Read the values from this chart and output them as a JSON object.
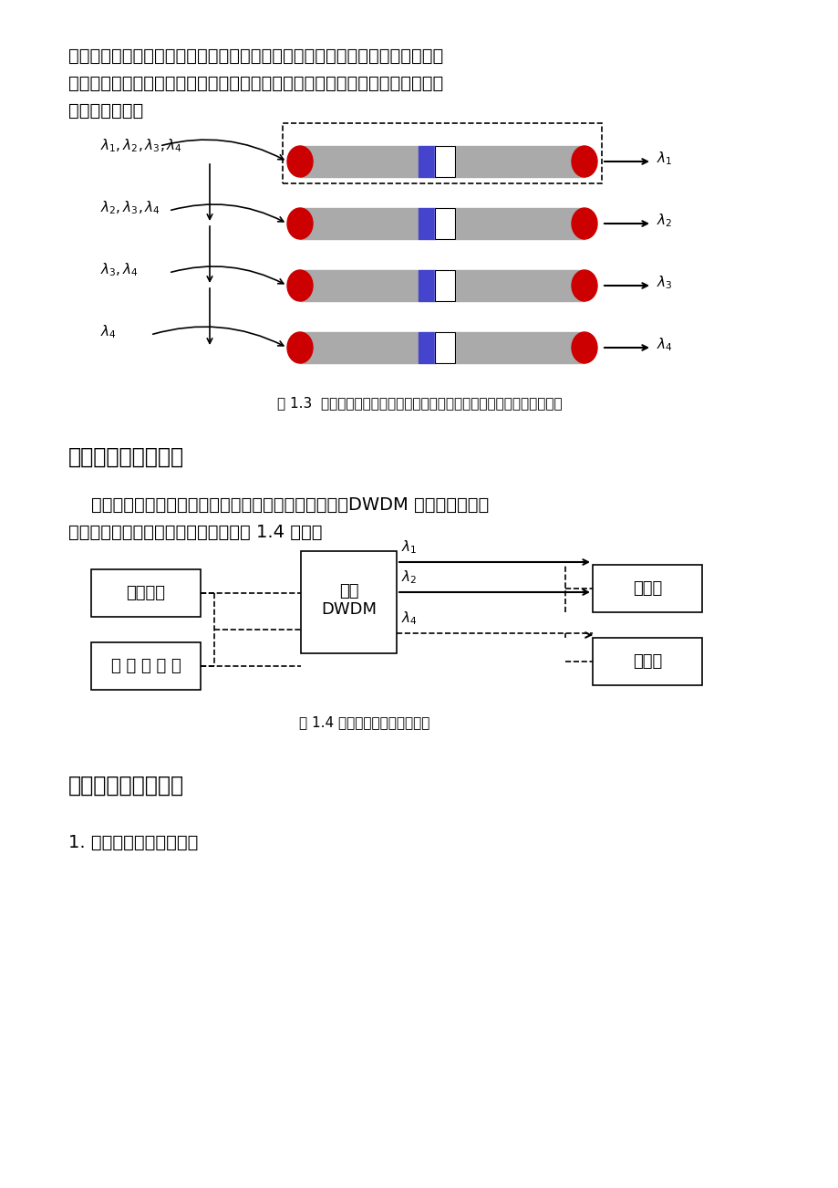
{
  "bg_color": "#ffffff",
  "text_color": "#000000",
  "para1": "级联而成。输入的多个波长的光信号每遇到一个指定波长的滤光片，对应该波长",
  "para2": "的光信号被透过，而其余波长的光信号则被反射，一直到所有波长的光信号从相",
  "para3": "应的端口输出。",
  "fig1_caption": "图 1.3  介质膜滤波器型密集波分复用器结构（虚线部分为一个滤波单元）",
  "section3_title": "三、实验仪器和装置",
  "section3_p1": "    本实验仪器和装置主要包括可调谐激光器、宽带光源、DWDM 器件、光谱仪、",
  "section3_p2": "光功率计和光纤熔接机。实验系统如图 1.4 所示。",
  "fig2_caption": "图 1.4 密集波分复用器实验系统",
  "section4_title": "四、实验内容和步骤",
  "section4_p1": "1. 密集波分复用器的设计"
}
